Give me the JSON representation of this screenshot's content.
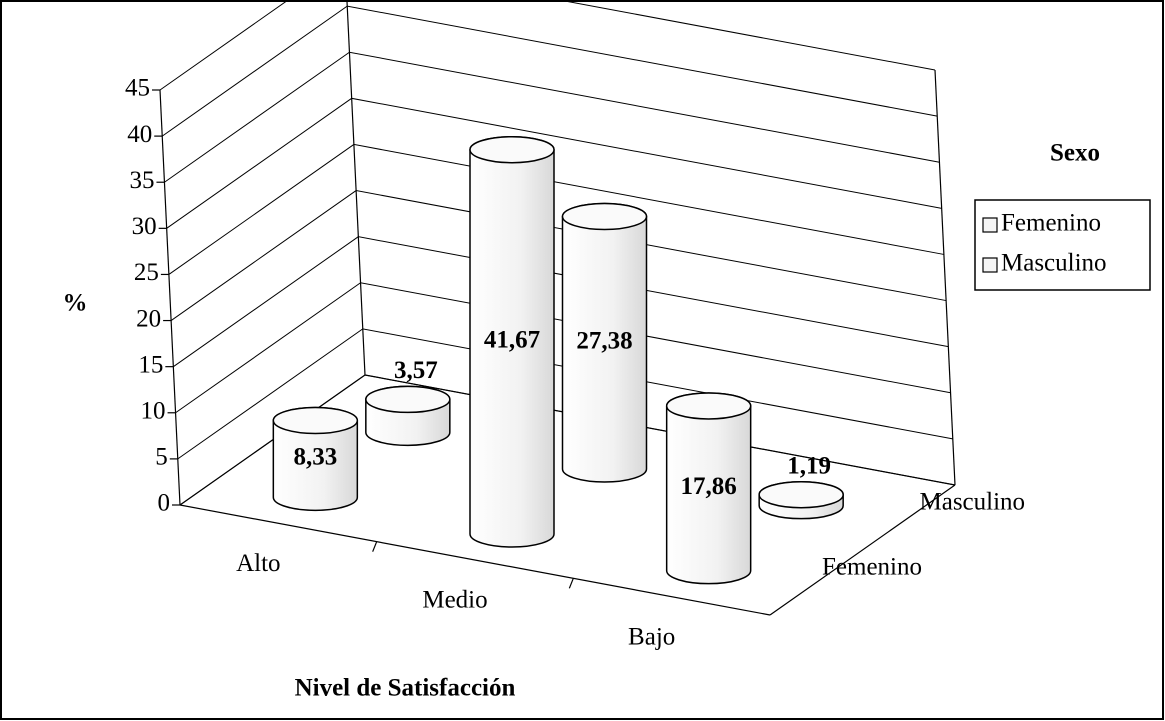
{
  "chart_data": {
    "type": "cylinder3d",
    "title": null,
    "y_label": "%",
    "x_label": "Nivel de Satisfacción",
    "legend_title": "Sexo",
    "categories": [
      "Alto",
      "Medio",
      "Bajo"
    ],
    "series": [
      {
        "name": "Femenino",
        "color": "#f4f4f4",
        "values": [
          8.33,
          41.67,
          17.86
        ],
        "value_labels": [
          "8,33",
          "41,67",
          "17,86"
        ]
      },
      {
        "name": "Masculino",
        "color": "#f4f4f4",
        "values": [
          3.57,
          27.38,
          1.19
        ],
        "value_labels": [
          "3,57",
          "27,38",
          "1,19"
        ]
      }
    ],
    "ylim": [
      0,
      45
    ],
    "yticks": [
      0,
      5,
      10,
      15,
      20,
      25,
      30,
      35,
      40,
      45
    ],
    "grid": true,
    "legend": "right"
  }
}
